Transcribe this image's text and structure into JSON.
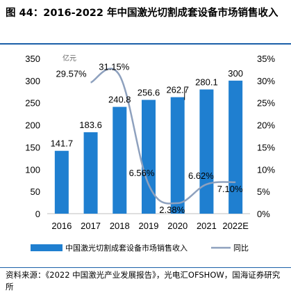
{
  "figure": {
    "title": "图 44：2016-2022 年中国激光切割成套设备市场销售收入",
    "source": "资料来源：《2022 中国激光产业发展报告》，光电汇OFSHOW，国海证券研究所"
  },
  "chart_data": {
    "type": "bar",
    "categories": [
      "2016",
      "2017",
      "2018",
      "2019",
      "2020",
      "2021",
      "2022E"
    ],
    "series": [
      {
        "name": "中国激光切割成套设备市场销售收入",
        "type": "bar",
        "axis": "left",
        "values": [
          141.7,
          183.6,
          240.8,
          256.6,
          262.7,
          280.1,
          300
        ],
        "labels": [
          "141.7",
          "183.6",
          "240.8",
          "256.6",
          "262.7",
          "280.1",
          "300"
        ],
        "color": "#1f7fd0"
      },
      {
        "name": "同比",
        "type": "line",
        "axis": "right",
        "values": [
          null,
          29.57,
          31.15,
          6.56,
          2.38,
          6.62,
          7.1
        ],
        "labels": [
          "",
          "29.57%",
          "31.15%",
          "6.56%",
          "2.38%",
          "6.62%",
          "7.10%"
        ],
        "color": "#8ea1be"
      }
    ],
    "yleft": {
      "unit": "亿元",
      "ylim": [
        0,
        350
      ],
      "ticks": [
        "0",
        "50",
        "100",
        "150",
        "200",
        "250",
        "300",
        "350"
      ]
    },
    "yright": {
      "ylim": [
        0,
        35
      ],
      "ticks": [
        "0%",
        "5%",
        "10%",
        "15%",
        "20%",
        "25%",
        "30%",
        "35%"
      ]
    },
    "grid": false,
    "legend": "bottom"
  }
}
